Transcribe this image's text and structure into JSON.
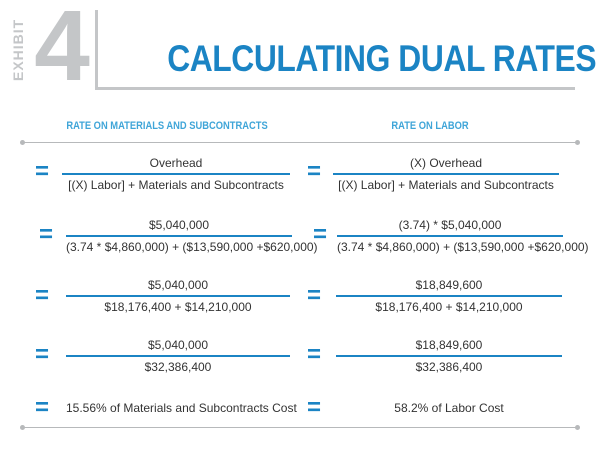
{
  "header": {
    "exhibit_word": "EXHIBIT",
    "exhibit_number": "4",
    "title": "CALCULATING DUAL RATES"
  },
  "columns": {
    "left_heading": "RATE ON MATERIALS AND SUBCONTRACTS",
    "right_heading": "RATE ON LABOR"
  },
  "rows": [
    {
      "left": {
        "num": "Overhead",
        "den": "[(X) Labor] + Materials and Subcontracts"
      },
      "right": {
        "num": "(X) Overhead",
        "den": "[(X) Labor] + Materials and Subcontracts"
      }
    },
    {
      "left": {
        "num": "$5,040,000",
        "den": "(3.74 * $4,860,000) + ($13,590,000 +$620,000)"
      },
      "right": {
        "num": "(3.74) * $5,040,000",
        "den": "(3.74 * $4,860,000) + ($13,590,000 +$620,000)"
      }
    },
    {
      "left": {
        "num": "$5,040,000",
        "den": "$18,176,400 + $14,210,000"
      },
      "right": {
        "num": "$18,849,600",
        "den": "$18,176,400 + $14,210,000"
      }
    },
    {
      "left": {
        "num": "$5,040,000",
        "den": "$32,386,400"
      },
      "right": {
        "num": "$18,849,600",
        "den": "$32,386,400"
      }
    }
  ],
  "results": {
    "left": "15.56% of Materials and Subcontracts Cost",
    "right": "58.2% of Labor Cost"
  },
  "equals_sign": "=",
  "colors": {
    "accent": "#1b84c4",
    "heading": "#3fa5d8",
    "muted": "#c4c6c8",
    "text": "#333333"
  }
}
